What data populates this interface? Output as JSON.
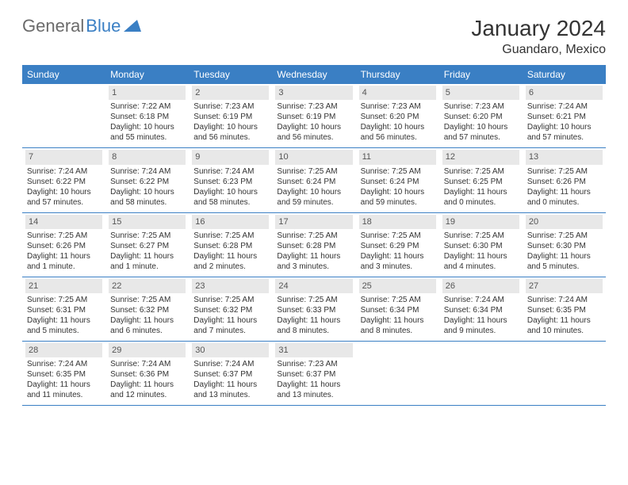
{
  "brand": {
    "part1": "General",
    "part2": "Blue"
  },
  "title": "January 2024",
  "location": "Guandaro, Mexico",
  "colors": {
    "header_bg": "#3a7fc4",
    "header_text": "#ffffff",
    "daynum_bg": "#e8e8e8",
    "daynum_text": "#555555",
    "body_text": "#333333",
    "rule": "#3a7fc4",
    "logo_gray": "#6b6b6b",
    "logo_blue": "#3a7fc4"
  },
  "dayNames": [
    "Sunday",
    "Monday",
    "Tuesday",
    "Wednesday",
    "Thursday",
    "Friday",
    "Saturday"
  ],
  "weeks": [
    [
      null,
      {
        "n": "1",
        "sr": "Sunrise: 7:22 AM",
        "ss": "Sunset: 6:18 PM",
        "dl": "Daylight: 10 hours and 55 minutes."
      },
      {
        "n": "2",
        "sr": "Sunrise: 7:23 AM",
        "ss": "Sunset: 6:19 PM",
        "dl": "Daylight: 10 hours and 56 minutes."
      },
      {
        "n": "3",
        "sr": "Sunrise: 7:23 AM",
        "ss": "Sunset: 6:19 PM",
        "dl": "Daylight: 10 hours and 56 minutes."
      },
      {
        "n": "4",
        "sr": "Sunrise: 7:23 AM",
        "ss": "Sunset: 6:20 PM",
        "dl": "Daylight: 10 hours and 56 minutes."
      },
      {
        "n": "5",
        "sr": "Sunrise: 7:23 AM",
        "ss": "Sunset: 6:20 PM",
        "dl": "Daylight: 10 hours and 57 minutes."
      },
      {
        "n": "6",
        "sr": "Sunrise: 7:24 AM",
        "ss": "Sunset: 6:21 PM",
        "dl": "Daylight: 10 hours and 57 minutes."
      }
    ],
    [
      {
        "n": "7",
        "sr": "Sunrise: 7:24 AM",
        "ss": "Sunset: 6:22 PM",
        "dl": "Daylight: 10 hours and 57 minutes."
      },
      {
        "n": "8",
        "sr": "Sunrise: 7:24 AM",
        "ss": "Sunset: 6:22 PM",
        "dl": "Daylight: 10 hours and 58 minutes."
      },
      {
        "n": "9",
        "sr": "Sunrise: 7:24 AM",
        "ss": "Sunset: 6:23 PM",
        "dl": "Daylight: 10 hours and 58 minutes."
      },
      {
        "n": "10",
        "sr": "Sunrise: 7:25 AM",
        "ss": "Sunset: 6:24 PM",
        "dl": "Daylight: 10 hours and 59 minutes."
      },
      {
        "n": "11",
        "sr": "Sunrise: 7:25 AM",
        "ss": "Sunset: 6:24 PM",
        "dl": "Daylight: 10 hours and 59 minutes."
      },
      {
        "n": "12",
        "sr": "Sunrise: 7:25 AM",
        "ss": "Sunset: 6:25 PM",
        "dl": "Daylight: 11 hours and 0 minutes."
      },
      {
        "n": "13",
        "sr": "Sunrise: 7:25 AM",
        "ss": "Sunset: 6:26 PM",
        "dl": "Daylight: 11 hours and 0 minutes."
      }
    ],
    [
      {
        "n": "14",
        "sr": "Sunrise: 7:25 AM",
        "ss": "Sunset: 6:26 PM",
        "dl": "Daylight: 11 hours and 1 minute."
      },
      {
        "n": "15",
        "sr": "Sunrise: 7:25 AM",
        "ss": "Sunset: 6:27 PM",
        "dl": "Daylight: 11 hours and 1 minute."
      },
      {
        "n": "16",
        "sr": "Sunrise: 7:25 AM",
        "ss": "Sunset: 6:28 PM",
        "dl": "Daylight: 11 hours and 2 minutes."
      },
      {
        "n": "17",
        "sr": "Sunrise: 7:25 AM",
        "ss": "Sunset: 6:28 PM",
        "dl": "Daylight: 11 hours and 3 minutes."
      },
      {
        "n": "18",
        "sr": "Sunrise: 7:25 AM",
        "ss": "Sunset: 6:29 PM",
        "dl": "Daylight: 11 hours and 3 minutes."
      },
      {
        "n": "19",
        "sr": "Sunrise: 7:25 AM",
        "ss": "Sunset: 6:30 PM",
        "dl": "Daylight: 11 hours and 4 minutes."
      },
      {
        "n": "20",
        "sr": "Sunrise: 7:25 AM",
        "ss": "Sunset: 6:30 PM",
        "dl": "Daylight: 11 hours and 5 minutes."
      }
    ],
    [
      {
        "n": "21",
        "sr": "Sunrise: 7:25 AM",
        "ss": "Sunset: 6:31 PM",
        "dl": "Daylight: 11 hours and 5 minutes."
      },
      {
        "n": "22",
        "sr": "Sunrise: 7:25 AM",
        "ss": "Sunset: 6:32 PM",
        "dl": "Daylight: 11 hours and 6 minutes."
      },
      {
        "n": "23",
        "sr": "Sunrise: 7:25 AM",
        "ss": "Sunset: 6:32 PM",
        "dl": "Daylight: 11 hours and 7 minutes."
      },
      {
        "n": "24",
        "sr": "Sunrise: 7:25 AM",
        "ss": "Sunset: 6:33 PM",
        "dl": "Daylight: 11 hours and 8 minutes."
      },
      {
        "n": "25",
        "sr": "Sunrise: 7:25 AM",
        "ss": "Sunset: 6:34 PM",
        "dl": "Daylight: 11 hours and 8 minutes."
      },
      {
        "n": "26",
        "sr": "Sunrise: 7:24 AM",
        "ss": "Sunset: 6:34 PM",
        "dl": "Daylight: 11 hours and 9 minutes."
      },
      {
        "n": "27",
        "sr": "Sunrise: 7:24 AM",
        "ss": "Sunset: 6:35 PM",
        "dl": "Daylight: 11 hours and 10 minutes."
      }
    ],
    [
      {
        "n": "28",
        "sr": "Sunrise: 7:24 AM",
        "ss": "Sunset: 6:35 PM",
        "dl": "Daylight: 11 hours and 11 minutes."
      },
      {
        "n": "29",
        "sr": "Sunrise: 7:24 AM",
        "ss": "Sunset: 6:36 PM",
        "dl": "Daylight: 11 hours and 12 minutes."
      },
      {
        "n": "30",
        "sr": "Sunrise: 7:24 AM",
        "ss": "Sunset: 6:37 PM",
        "dl": "Daylight: 11 hours and 13 minutes."
      },
      {
        "n": "31",
        "sr": "Sunrise: 7:23 AM",
        "ss": "Sunset: 6:37 PM",
        "dl": "Daylight: 11 hours and 13 minutes."
      },
      null,
      null,
      null
    ]
  ]
}
